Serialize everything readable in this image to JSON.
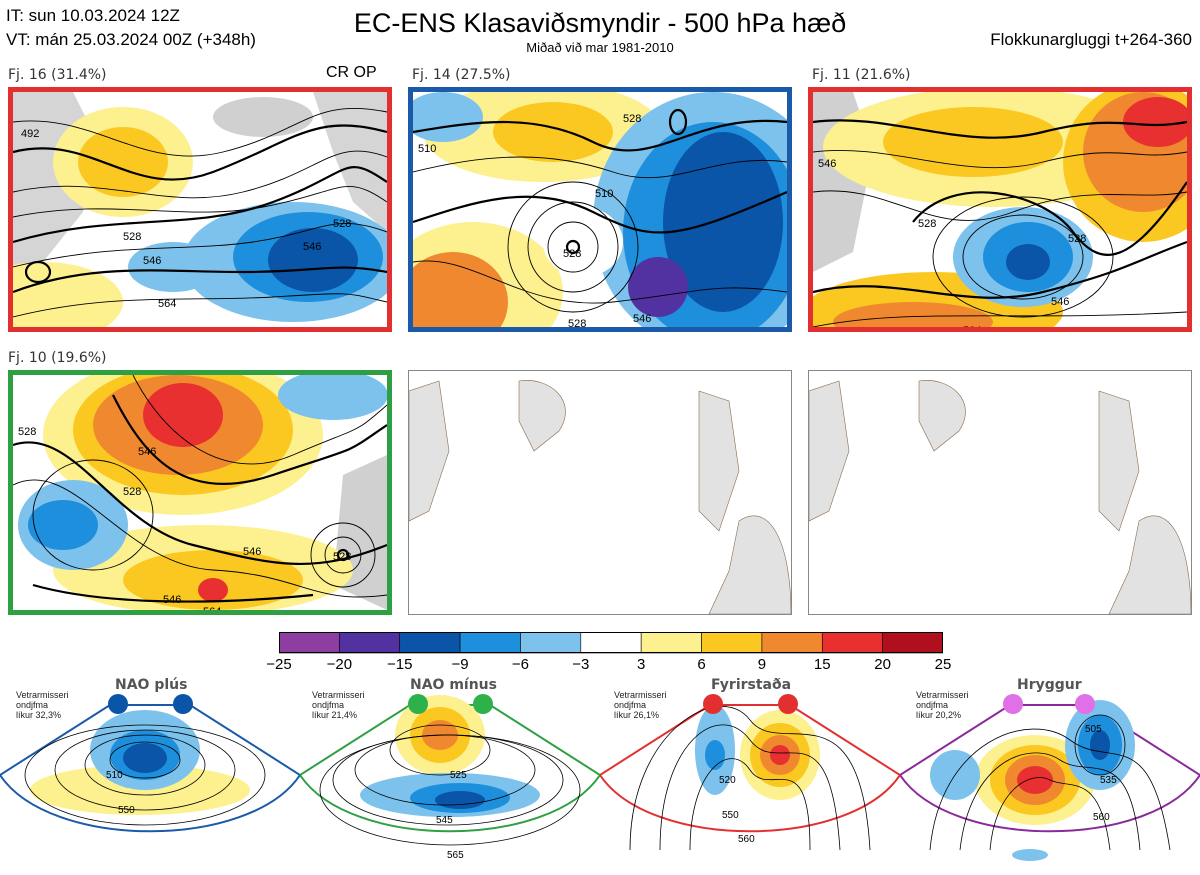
{
  "header": {
    "title": "EC-ENS Klasaviðsmyndir - 500 hPa hæð",
    "subtitle": "Miðað við mar 1981-2010",
    "issue_time": "IT: sun 10.03.2024 12Z",
    "valid_time": "VT: mán 25.03.2024 00Z  (+348h)",
    "window": "Flokkunargluggi t+264-360"
  },
  "clusters": [
    {
      "label": "Fj. 16 (31.4%)",
      "badge": "CR OP",
      "border": "#e23030",
      "contours": [
        "492",
        "528",
        "546",
        "564",
        "546",
        "528"
      ]
    },
    {
      "label": "Fj. 14 (27.5%)",
      "border": "#1a5aa8",
      "contours": [
        "510",
        "528",
        "510",
        "528",
        "546",
        "528"
      ]
    },
    {
      "label": "Fj. 11 (21.6%)",
      "border": "#e23030",
      "contours": [
        "546",
        "528",
        "528",
        "546",
        "564"
      ]
    },
    {
      "label": "Fj. 10 (19.6%)",
      "border": "#2ea043",
      "contours": [
        "528",
        "546",
        "528",
        "546",
        "546",
        "564",
        "528"
      ]
    }
  ],
  "colorbar": {
    "ticks": [
      "−25",
      "−20",
      "−15",
      "−9",
      "−6",
      "−3",
      "3",
      "6",
      "9",
      "15",
      "20",
      "25"
    ],
    "colors": [
      "#8d3ea0",
      "#5232a0",
      "#0a55a8",
      "#1e8fdc",
      "#7cc2ec",
      "#ffffff",
      "#fdf08e",
      "#fbc822",
      "#f08830",
      "#e83030",
      "#b0101e"
    ]
  },
  "regimes": [
    {
      "name": "NAO plús",
      "season": "Vetrarmisseri",
      "height": "ondjfma",
      "prob": "líkur 32,3%",
      "color": "#1a5aa8",
      "dot": "#0a55a8",
      "contours": [
        "510",
        "550"
      ]
    },
    {
      "name": "NAO mínus",
      "season": "Vetrarmisseri",
      "height": "ondjfma",
      "prob": "líkur 21,4%",
      "color": "#2ea043",
      "dot": "#2eb04b",
      "contours": [
        "525",
        "545",
        "565"
      ]
    },
    {
      "name": "Fyrirstaða",
      "season": "Vetrarmisseri",
      "height": "ondjfma",
      "prob": "líkur 26,1%",
      "color": "#e23030",
      "dot": "#e23030",
      "contours": [
        "520",
        "550",
        "560"
      ]
    },
    {
      "name": "Hryggur",
      "season": "Vetrarmisseri",
      "height": "ondjfma",
      "prob": "líkur 20,2%",
      "color": "#8a2a9a",
      "dot": "#e070e8",
      "contours": [
        "505",
        "535",
        "560"
      ]
    }
  ]
}
